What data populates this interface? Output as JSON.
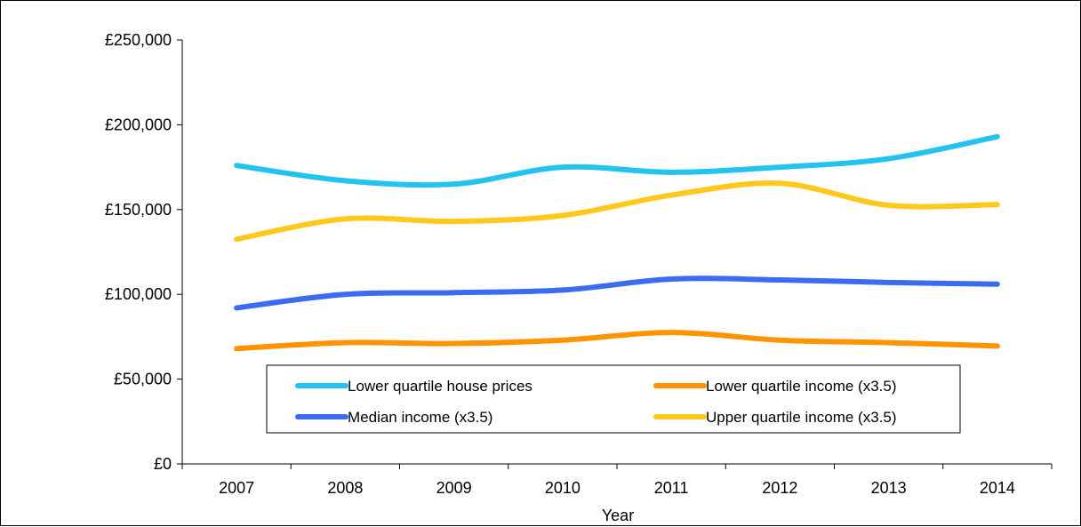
{
  "chart_data": {
    "type": "line",
    "title": "",
    "xlabel": "Year",
    "ylabel": "",
    "categories": [
      "2007",
      "2008",
      "2009",
      "2010",
      "2011",
      "2012",
      "2013",
      "2014"
    ],
    "ylim": [
      0,
      250000
    ],
    "yticks": [
      0,
      50000,
      100000,
      150000,
      200000,
      250000
    ],
    "ytick_labels": [
      "£0",
      "£50,000",
      "£100,000",
      "£150,000",
      "£200,000",
      "£250,000"
    ],
    "grid": false,
    "legend": "inside-bottom-center",
    "series": [
      {
        "name": "Lower quartile house prices",
        "color": "#22C3EE",
        "values": [
          176000,
          167000,
          165000,
          175000,
          172000,
          175000,
          180000,
          193000
        ]
      },
      {
        "name": "Lower quartile income (x3.5)",
        "color": "#FF9400",
        "values": [
          68000,
          71500,
          71000,
          73000,
          77500,
          73000,
          71500,
          69500
        ]
      },
      {
        "name": "Median income (x3.5)",
        "color": "#3B6CF0",
        "values": [
          92000,
          100000,
          101000,
          102500,
          109000,
          108500,
          107000,
          106000
        ]
      },
      {
        "name": "Upper quartile income (x3.5)",
        "color": "#FFC81A",
        "values": [
          132500,
          144500,
          143000,
          146500,
          158500,
          165500,
          152500,
          153000
        ]
      }
    ]
  }
}
